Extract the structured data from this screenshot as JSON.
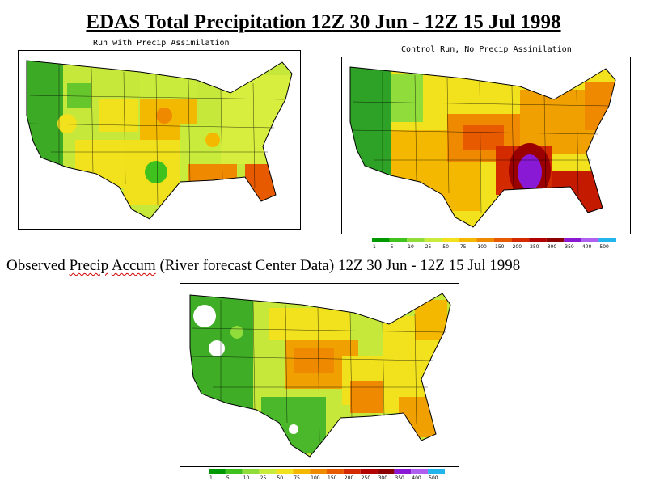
{
  "title": {
    "part1": "EDAS Total Precipitation ",
    "part2": "12Z 30 Jun - 12Z 15 Jul 1998"
  },
  "panels": {
    "assim": {
      "label": "Run with Precip Assimilation"
    },
    "control": {
      "label": "Control Run, No Precip Assimilation"
    },
    "observed": {
      "heading": {
        "w1": "Observed",
        "w2": "Precip",
        "w3": "Accum",
        "rest": "(River forecast Center Data) 12Z 30 Jun - 12Z 15 Jul 1998"
      }
    }
  },
  "legend": {
    "values": [
      "1",
      "5",
      "10",
      "25",
      "50",
      "75",
      "100",
      "150",
      "200",
      "250",
      "300",
      "350",
      "400",
      "500"
    ],
    "colors": [
      "#009a00",
      "#3fc21e",
      "#8fdc3a",
      "#c9ec3c",
      "#f2e21e",
      "#f5b800",
      "#ef8a00",
      "#e85a00",
      "#d42a00",
      "#b20000",
      "#8c0000",
      "#8a19d6",
      "#b060f0",
      "#22b4ea"
    ]
  }
}
